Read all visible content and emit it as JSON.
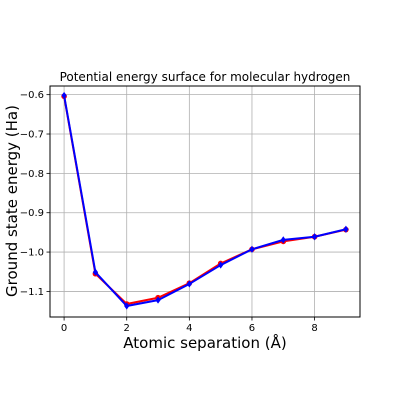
{
  "chart_data": {
    "type": "line",
    "title": "Potential energy surface for molecular hydrogen",
    "xlabel": "Atomic separation (Å)",
    "ylabel": "Ground state energy (Ha)",
    "xlim": [
      -0.45,
      9.45
    ],
    "ylim": [
      -1.165,
      -0.578
    ],
    "xticks": [
      0,
      2,
      4,
      6,
      8
    ],
    "yticks": [
      -0.6,
      -0.7,
      -0.8,
      -0.9,
      -1.0,
      -1.1
    ],
    "ytick_labels": [
      "−0.6",
      "−0.7",
      "−0.8",
      "−0.9",
      "−1.0",
      "−1.1"
    ],
    "grid": true,
    "x": [
      0,
      1,
      2,
      3,
      4,
      5,
      6,
      7,
      8,
      9
    ],
    "series": [
      {
        "color": "#ff0000",
        "marker": "circle",
        "values": [
          -0.604,
          -1.055,
          -1.132,
          -1.116,
          -1.079,
          -1.029,
          -0.993,
          -0.973,
          -0.961,
          -0.943
        ]
      },
      {
        "color": "#0000ff",
        "marker": "diamond",
        "values": [
          -0.602,
          -1.051,
          -1.137,
          -1.122,
          -1.081,
          -1.033,
          -0.993,
          -0.969,
          -0.961,
          -0.942
        ]
      }
    ]
  }
}
